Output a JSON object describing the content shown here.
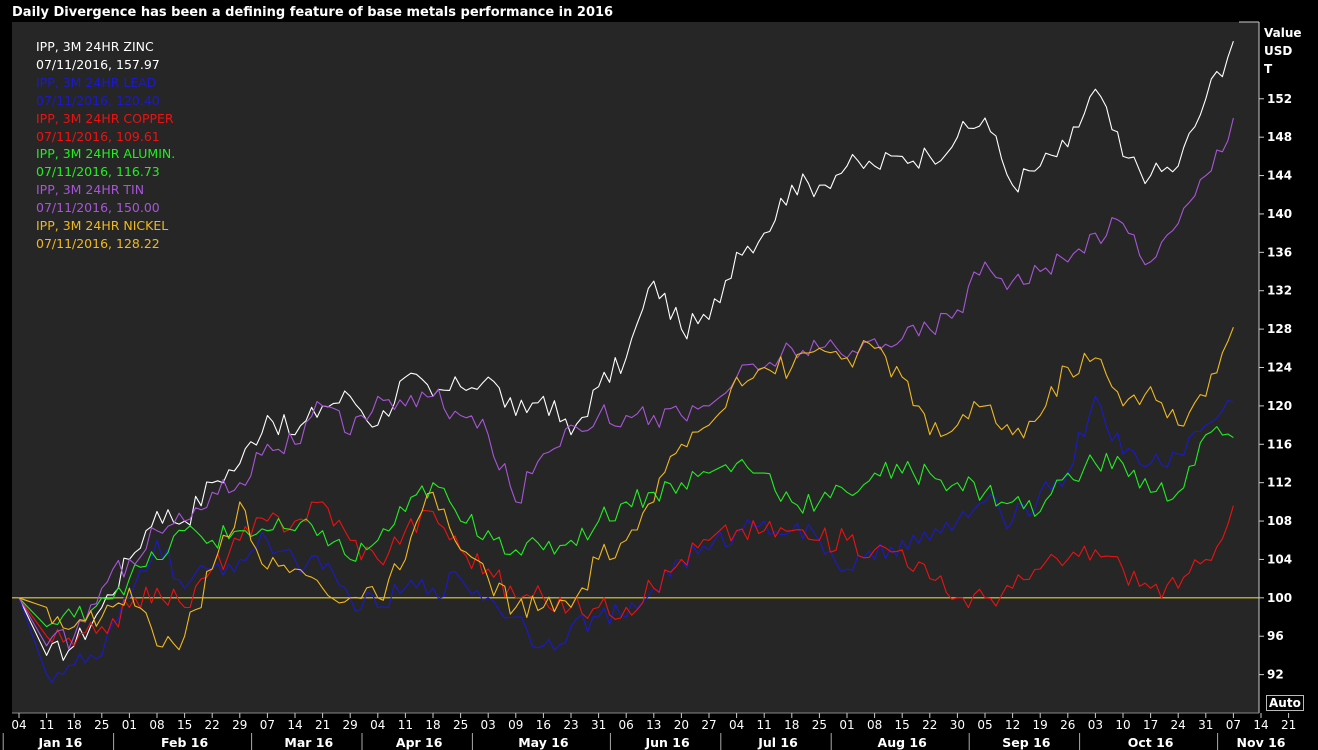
{
  "title": "Daily Divergence has been a defining feature of base metals performance in 2016",
  "unit_label": [
    "Value",
    "USD",
    "T"
  ],
  "auto_button": "Auto",
  "legend": [
    {
      "name": "IPP, 3M 24HR  ZINC",
      "value": "07/11/2016, 157.97",
      "color": "#ffffff"
    },
    {
      "name": "IPP, 3M 24HR  LEAD",
      "value": "07/11/2016, 120.40",
      "color": "#1a1acc"
    },
    {
      "name": "IPP, 3M 24HR COPPER",
      "value": "07/11/2016, 109.61",
      "color": "#ee1111"
    },
    {
      "name": "IPP, 3M 24HR ALUMIN.",
      "value": "07/11/2016, 116.73",
      "color": "#22ee22"
    },
    {
      "name": "IPP, 3M 24HR  TIN",
      "value": "07/11/2016, 150.00",
      "color": "#a855d8"
    },
    {
      "name": "IPP, 3M 24HR  NICKEL",
      "value": "07/11/2016, 128.22",
      "color": "#f0b820"
    }
  ],
  "chart_data": {
    "type": "line",
    "title": "Daily Divergence has been a defining feature of base metals performance in 2016",
    "ylabel": "Value USD T",
    "ylim": [
      88,
      160
    ],
    "yticks": [
      92,
      96,
      100,
      104,
      108,
      112,
      116,
      120,
      124,
      128,
      132,
      136,
      140,
      144,
      148,
      152
    ],
    "reference_line": 100,
    "x_day_labels": [
      "04",
      "11",
      "18",
      "25",
      "01",
      "08",
      "15",
      "22",
      "29",
      "07",
      "14",
      "21",
      "29",
      "04",
      "11",
      "18",
      "25",
      "03",
      "09",
      "16",
      "23",
      "31",
      "06",
      "13",
      "20",
      "27",
      "04",
      "11",
      "18",
      "25",
      "01",
      "08",
      "15",
      "22",
      "30",
      "05",
      "12",
      "19",
      "26",
      "03",
      "10",
      "17",
      "24",
      "31",
      "07",
      "14",
      "21"
    ],
    "x_month_labels": [
      "Jan 16",
      "Feb 16",
      "Mar 16",
      "Apr 16",
      "May 16",
      "Jun 16",
      "Jul 16",
      "Aug 16",
      "Sep 16",
      "Oct 16",
      "Nov 16"
    ],
    "x_month_spans": [
      [
        0,
        3
      ],
      [
        4,
        8
      ],
      [
        9,
        12
      ],
      [
        13,
        16
      ],
      [
        17,
        21
      ],
      [
        22,
        25
      ],
      [
        26,
        29
      ],
      [
        30,
        34
      ],
      [
        35,
        38
      ],
      [
        39,
        43
      ],
      [
        44,
        46
      ]
    ],
    "series": [
      {
        "name": "IPP, 3M 24HR  ZINC",
        "color": "#ffffff",
        "points": [
          [
            0,
            100
          ],
          [
            1,
            94
          ],
          [
            2,
            95
          ],
          [
            3,
            99
          ],
          [
            4,
            104
          ],
          [
            5,
            109
          ],
          [
            6,
            108
          ],
          [
            7,
            112
          ],
          [
            8,
            114
          ],
          [
            9,
            119
          ],
          [
            10,
            117
          ],
          [
            11,
            120
          ],
          [
            12,
            121
          ],
          [
            13,
            118
          ],
          [
            14,
            123
          ],
          [
            15,
            121
          ],
          [
            16,
            122
          ],
          [
            17,
            123
          ],
          [
            18,
            119
          ],
          [
            19,
            121
          ],
          [
            20,
            117
          ],
          [
            21,
            122
          ],
          [
            22,
            125
          ],
          [
            23,
            133
          ],
          [
            24,
            128
          ],
          [
            25,
            129
          ],
          [
            26,
            136
          ],
          [
            27,
            138
          ],
          [
            28,
            143
          ],
          [
            29,
            143
          ],
          [
            30,
            145
          ],
          [
            31,
            145
          ],
          [
            32,
            146
          ],
          [
            33,
            146
          ],
          [
            34,
            148
          ],
          [
            35,
            150
          ],
          [
            36,
            143
          ],
          [
            37,
            145
          ],
          [
            38,
            147
          ],
          [
            39,
            153
          ],
          [
            40,
            146
          ],
          [
            41,
            144
          ],
          [
            42,
            145
          ],
          [
            43,
            152
          ],
          [
            44,
            158
          ]
        ]
      },
      {
        "name": "IPP, 3M 24HR  LEAD",
        "color": "#1a1acc",
        "points": [
          [
            0,
            100
          ],
          [
            1,
            92
          ],
          [
            2,
            93
          ],
          [
            3,
            94
          ],
          [
            4,
            100
          ],
          [
            5,
            106
          ],
          [
            6,
            101
          ],
          [
            7,
            103
          ],
          [
            8,
            104
          ],
          [
            9,
            106
          ],
          [
            10,
            104
          ],
          [
            11,
            103
          ],
          [
            12,
            100
          ],
          [
            13,
            99
          ],
          [
            14,
            101
          ],
          [
            15,
            101
          ],
          [
            16,
            102
          ],
          [
            17,
            100
          ],
          [
            18,
            98
          ],
          [
            19,
            95
          ],
          [
            20,
            97
          ],
          [
            21,
            98
          ],
          [
            22,
            98
          ],
          [
            23,
            101
          ],
          [
            24,
            104
          ],
          [
            25,
            105
          ],
          [
            26,
            107
          ],
          [
            27,
            108
          ],
          [
            28,
            107
          ],
          [
            29,
            106
          ],
          [
            30,
            103
          ],
          [
            31,
            104
          ],
          [
            32,
            106
          ],
          [
            33,
            106
          ],
          [
            34,
            108
          ],
          [
            35,
            110
          ],
          [
            36,
            108
          ],
          [
            37,
            111
          ],
          [
            38,
            113
          ],
          [
            39,
            121
          ],
          [
            40,
            115
          ],
          [
            41,
            114
          ],
          [
            42,
            115
          ],
          [
            43,
            118
          ],
          [
            44,
            120.4
          ]
        ]
      },
      {
        "name": "IPP, 3M 24HR COPPER",
        "color": "#ee1111",
        "points": [
          [
            0,
            100
          ],
          [
            1,
            96
          ],
          [
            2,
            95
          ],
          [
            3,
            97
          ],
          [
            4,
            99
          ],
          [
            5,
            101
          ],
          [
            6,
            99
          ],
          [
            7,
            103
          ],
          [
            8,
            106
          ],
          [
            9,
            108
          ],
          [
            10,
            108
          ],
          [
            11,
            110
          ],
          [
            12,
            106
          ],
          [
            13,
            104
          ],
          [
            14,
            107
          ],
          [
            15,
            109
          ],
          [
            16,
            105
          ],
          [
            17,
            103
          ],
          [
            18,
            100
          ],
          [
            19,
            100
          ],
          [
            20,
            99
          ],
          [
            21,
            99
          ],
          [
            22,
            99
          ],
          [
            23,
            101
          ],
          [
            24,
            104
          ],
          [
            25,
            106
          ],
          [
            26,
            107
          ],
          [
            27,
            107
          ],
          [
            28,
            107
          ],
          [
            29,
            106
          ],
          [
            30,
            106
          ],
          [
            31,
            105
          ],
          [
            32,
            105
          ],
          [
            33,
            102
          ],
          [
            34,
            100
          ],
          [
            35,
            100
          ],
          [
            36,
            101
          ],
          [
            37,
            103
          ],
          [
            38,
            104
          ],
          [
            39,
            105
          ],
          [
            40,
            103
          ],
          [
            41,
            101
          ],
          [
            42,
            101
          ],
          [
            43,
            104
          ],
          [
            44,
            109.6
          ]
        ]
      },
      {
        "name": "IPP, 3M 24HR ALUMIN.",
        "color": "#22ee22",
        "points": [
          [
            0,
            100
          ],
          [
            1,
            97
          ],
          [
            2,
            98
          ],
          [
            3,
            100
          ],
          [
            4,
            102
          ],
          [
            5,
            104
          ],
          [
            6,
            107
          ],
          [
            7,
            106
          ],
          [
            8,
            107
          ],
          [
            9,
            107
          ],
          [
            10,
            107
          ],
          [
            11,
            107
          ],
          [
            12,
            104
          ],
          [
            13,
            106
          ],
          [
            14,
            109
          ],
          [
            15,
            112
          ],
          [
            16,
            108
          ],
          [
            17,
            107
          ],
          [
            18,
            105
          ],
          [
            19,
            105
          ],
          [
            20,
            106
          ],
          [
            21,
            108
          ],
          [
            22,
            110
          ],
          [
            23,
            111
          ],
          [
            24,
            112
          ],
          [
            25,
            113
          ],
          [
            26,
            114
          ],
          [
            27,
            113
          ],
          [
            28,
            110
          ],
          [
            29,
            110
          ],
          [
            30,
            111
          ],
          [
            31,
            113
          ],
          [
            32,
            113
          ],
          [
            33,
            113
          ],
          [
            34,
            112
          ],
          [
            35,
            111
          ],
          [
            36,
            110
          ],
          [
            37,
            109
          ],
          [
            38,
            113
          ],
          [
            39,
            114
          ],
          [
            40,
            114
          ],
          [
            41,
            111
          ],
          [
            42,
            111
          ],
          [
            43,
            117
          ],
          [
            44,
            116.7
          ]
        ]
      },
      {
        "name": "IPP, 3M 24HR  TIN",
        "color": "#a855d8",
        "points": [
          [
            0,
            100
          ],
          [
            1,
            95
          ],
          [
            2,
            96
          ],
          [
            3,
            101
          ],
          [
            4,
            104
          ],
          [
            5,
            107
          ],
          [
            6,
            108
          ],
          [
            7,
            111
          ],
          [
            8,
            112
          ],
          [
            9,
            116
          ],
          [
            10,
            116
          ],
          [
            11,
            120
          ],
          [
            12,
            117
          ],
          [
            13,
            121
          ],
          [
            14,
            120
          ],
          [
            15,
            121
          ],
          [
            16,
            119
          ],
          [
            17,
            117
          ],
          [
            18,
            110
          ],
          [
            19,
            115
          ],
          [
            20,
            118
          ],
          [
            21,
            119
          ],
          [
            22,
            119
          ],
          [
            23,
            119
          ],
          [
            24,
            119
          ],
          [
            25,
            120
          ],
          [
            26,
            123
          ],
          [
            27,
            124
          ],
          [
            28,
            126
          ],
          [
            29,
            126
          ],
          [
            30,
            125
          ],
          [
            31,
            127
          ],
          [
            32,
            127
          ],
          [
            33,
            128
          ],
          [
            34,
            130
          ],
          [
            35,
            135
          ],
          [
            36,
            133
          ],
          [
            37,
            134
          ],
          [
            38,
            135
          ],
          [
            39,
            138
          ],
          [
            40,
            139
          ],
          [
            41,
            135
          ],
          [
            42,
            139
          ],
          [
            43,
            144
          ],
          [
            44,
            150
          ]
        ]
      },
      {
        "name": "IPP, 3M 24HR  NICKEL",
        "color": "#f0b820",
        "points": [
          [
            0,
            100
          ],
          [
            1,
            99
          ],
          [
            2,
            97
          ],
          [
            3,
            98
          ],
          [
            4,
            101
          ],
          [
            5,
            95
          ],
          [
            6,
            96
          ],
          [
            7,
            103
          ],
          [
            8,
            110
          ],
          [
            9,
            103
          ],
          [
            10,
            103
          ],
          [
            11,
            101
          ],
          [
            12,
            100
          ],
          [
            13,
            100
          ],
          [
            14,
            104
          ],
          [
            15,
            111
          ],
          [
            16,
            105
          ],
          [
            17,
            102
          ],
          [
            18,
            99
          ],
          [
            19,
            99
          ],
          [
            20,
            99
          ],
          [
            21,
            104
          ],
          [
            22,
            106
          ],
          [
            23,
            110
          ],
          [
            24,
            116
          ],
          [
            25,
            118
          ],
          [
            26,
            123
          ],
          [
            27,
            124
          ],
          [
            28,
            124
          ],
          [
            29,
            126
          ],
          [
            30,
            125
          ],
          [
            31,
            126
          ],
          [
            32,
            123
          ],
          [
            33,
            117
          ],
          [
            34,
            118
          ],
          [
            35,
            120
          ],
          [
            36,
            117
          ],
          [
            37,
            119
          ],
          [
            38,
            124
          ],
          [
            39,
            125
          ],
          [
            40,
            120
          ],
          [
            41,
            122
          ],
          [
            42,
            118
          ],
          [
            43,
            121
          ],
          [
            44,
            128.2
          ]
        ]
      }
    ]
  }
}
